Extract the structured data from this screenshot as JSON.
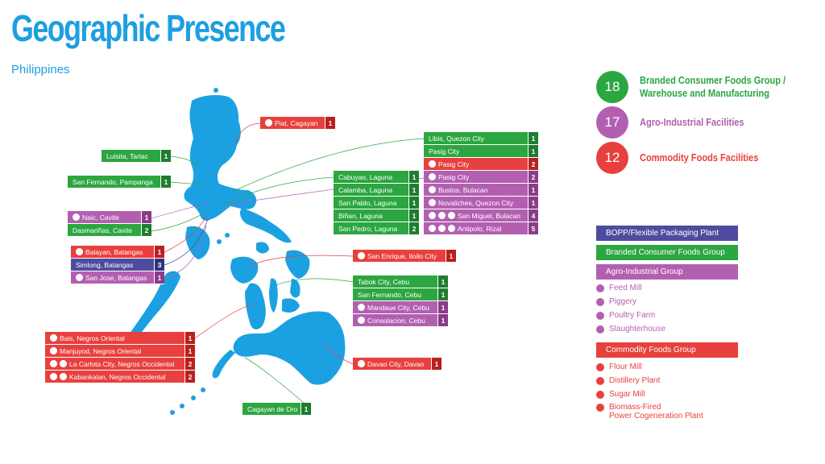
{
  "title": "Geographic Presence",
  "subtitle": "Philippines",
  "colors": {
    "map": "#1ba1e2",
    "green": "#2ca641",
    "red": "#e8403e",
    "purple": "#b35fb1",
    "blue": "#4e4c9e"
  },
  "summary": [
    {
      "count": "18",
      "label": "Branded Consumer Foods Group /",
      "label2": "Warehouse and Manufacturing",
      "color": "#2ca641"
    },
    {
      "count": "17",
      "label": "Agro-Industrial Facilities",
      "label2": "",
      "color": "#b35fb1"
    },
    {
      "count": "12",
      "label": "Commodity Foods Facilities",
      "label2": "",
      "color": "#e8403e"
    }
  ],
  "legend": {
    "bopp": "BOPP/Flexible Packaging Plant",
    "branded": "Branded Consumer Foods Group",
    "agro": "Agro-Industrial Group",
    "agro_items": [
      "Feed Mill",
      "Piggery",
      "Poultry Farm",
      "Slaughterhouse"
    ],
    "commodity": "Commodity Foods Group",
    "commodity_items": [
      "Flour Mill",
      "Distillery Plant",
      "Sugar Mill",
      "Biomass-Fired",
      "Power Cogeneration Plant"
    ]
  },
  "locations": {
    "piat": {
      "name": "Piat, Cagayan",
      "count": "1",
      "color": "r",
      "icons": 1
    },
    "luisita": {
      "name": "Luisita, Tarlac",
      "count": "1",
      "color": "g",
      "icons": 0
    },
    "sanfernando_p": {
      "name": "San Fernando, Pampanga",
      "count": "1",
      "color": "g",
      "icons": 0
    },
    "naic": {
      "name": "Naic, Cavite",
      "count": "1",
      "color": "p",
      "icons": 1
    },
    "dasmarinas": {
      "name": "Dasmariñas, Cavite",
      "count": "2",
      "color": "g",
      "icons": 0
    },
    "balayan": {
      "name": "Balayan, Batangas",
      "count": "1",
      "color": "r",
      "icons": 1
    },
    "simlong": {
      "name": "Simlong, Batangas",
      "count": "3",
      "color": "b",
      "icons": 0
    },
    "sanjose": {
      "name": "San Jose, Batangas",
      "count": "1",
      "color": "p",
      "icons": 1
    },
    "bais": {
      "name": "Bais, Negros Oriental",
      "count": "1",
      "color": "r",
      "icons": 1
    },
    "manjuyod": {
      "name": "Manjuyod, Negros Oriental",
      "count": "1",
      "color": "r",
      "icons": 1
    },
    "lacarlota": {
      "name": "La Carlota City, Negros Occidental",
      "count": "2",
      "color": "r",
      "icons": 2
    },
    "kabankalan": {
      "name": "Kabankalan, Negros Occidental",
      "count": "2",
      "color": "r",
      "icons": 2
    },
    "cagayandeoro": {
      "name": "Cagayan de Oro",
      "count": "1",
      "color": "g",
      "icons": 0
    },
    "cabuyao": {
      "name": "Cabuyao, Laguna",
      "count": "1",
      "color": "g",
      "icons": 0
    },
    "calamba": {
      "name": "Calamba, Laguna",
      "count": "1",
      "color": "g",
      "icons": 0
    },
    "sanpablo": {
      "name": "San Pablo, Laguna",
      "count": "1",
      "color": "g",
      "icons": 0
    },
    "binan": {
      "name": "Biñan, Laguna",
      "count": "1",
      "color": "g",
      "icons": 0
    },
    "sanpedro": {
      "name": "San Pedro, Laguna",
      "count": "2",
      "color": "g",
      "icons": 0
    },
    "libis": {
      "name": "Libis, Quezon City",
      "count": "1",
      "color": "g",
      "icons": 0
    },
    "pasig_g": {
      "name": "Pasig City",
      "count": "1",
      "color": "g",
      "icons": 0
    },
    "pasig_r": {
      "name": "Pasig City",
      "count": "2",
      "color": "r",
      "icons": 1
    },
    "pasig_p": {
      "name": "Pasig City",
      "count": "2",
      "color": "p",
      "icons": 1
    },
    "bustos": {
      "name": "Bustos, Bulacan",
      "count": "1",
      "color": "p",
      "icons": 1
    },
    "novaliches": {
      "name": "Novaliches, Quezon City",
      "count": "1",
      "color": "p",
      "icons": 1
    },
    "sanmiguel": {
      "name": "San Miguel, Bulacan",
      "count": "4",
      "color": "p",
      "icons": 3
    },
    "antipolo": {
      "name": "Antipolo, Rizal",
      "count": "5",
      "color": "p",
      "icons": 3
    },
    "sanenrique": {
      "name": "San Enrique, Iloilo City",
      "count": "1",
      "color": "r",
      "icons": 1
    },
    "tabok": {
      "name": "Tabok City, Cebu",
      "count": "1",
      "color": "g",
      "icons": 0
    },
    "sanfernando_c": {
      "name": "San Fernando, Cebu",
      "count": "1",
      "color": "g",
      "icons": 0
    },
    "mandaue": {
      "name": "Mandaue City, Cebu",
      "count": "1",
      "color": "p",
      "icons": 1
    },
    "consolacion": {
      "name": "Consolacion, Cebu",
      "count": "1",
      "color": "p",
      "icons": 1
    },
    "davao": {
      "name": "Davao City, Davao",
      "count": "1",
      "color": "r",
      "icons": 1
    }
  }
}
